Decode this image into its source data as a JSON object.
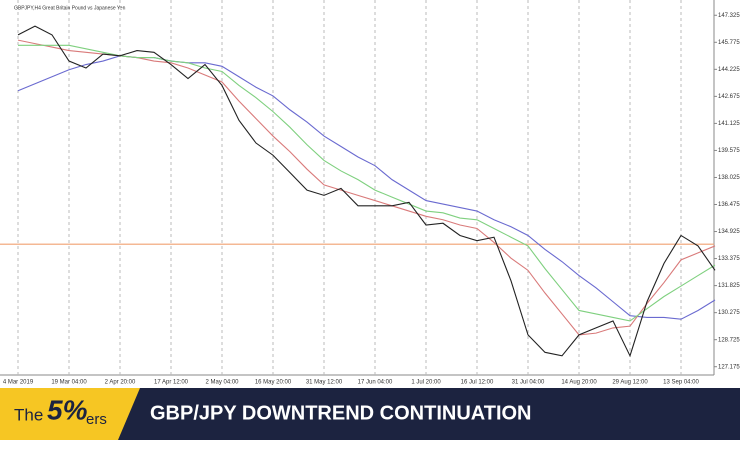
{
  "chart_data": {
    "type": "line",
    "header": "GBPJPY,H4 Great Britain Pound vs Japanese Yen",
    "categories": [
      "4 Mar 2019",
      null,
      null,
      "19 Mar 04:00",
      null,
      null,
      "2 Apr 20:00",
      null,
      null,
      "17 Apr 12:00",
      null,
      null,
      "2 May 04:00",
      null,
      null,
      "16 May 20:00",
      null,
      null,
      "31 May 12:00",
      null,
      null,
      "17 Jun 04:00",
      null,
      null,
      "1 Jul 20:00",
      null,
      null,
      "16 Jul 12:00",
      null,
      null,
      "31 Jul 04:00",
      null,
      null,
      "14 Aug 20:00",
      null,
      null,
      "29 Aug 12:00",
      null,
      null,
      "13 Sep 04:00",
      null,
      null
    ],
    "series": [
      {
        "color": "#6a6ad0",
        "values": [
          143.0,
          143.4,
          143.8,
          144.2,
          144.5,
          144.7,
          145.0,
          144.9,
          144.9,
          144.7,
          144.6,
          144.6,
          144.4,
          143.8,
          143.2,
          142.7,
          141.9,
          141.2,
          140.4,
          139.8,
          139.2,
          138.7,
          137.9,
          137.3,
          136.7,
          136.5,
          136.3,
          136.1,
          135.6,
          135.2,
          134.7,
          133.9,
          133.2,
          132.4,
          131.7,
          130.9,
          130.1,
          130.0,
          130.0,
          129.9,
          130.4,
          131.0
        ]
      },
      {
        "color": "#d97a7a",
        "values": [
          145.9,
          145.7,
          145.5,
          145.3,
          145.2,
          145.1,
          145.0,
          144.9,
          144.7,
          144.6,
          144.3,
          143.9,
          143.5,
          142.4,
          141.4,
          140.4,
          139.5,
          138.5,
          137.6,
          137.3,
          137.0,
          136.7,
          136.4,
          136.1,
          135.8,
          135.6,
          135.3,
          135.1,
          134.3,
          133.4,
          132.7,
          131.4,
          130.2,
          129.0,
          129.1,
          129.4,
          129.5,
          130.8,
          132.0,
          133.3,
          133.7,
          134.1
        ]
      },
      {
        "color": "#7fd07f",
        "values": [
          145.6,
          145.6,
          145.6,
          145.6,
          145.4,
          145.2,
          145.0,
          144.9,
          144.9,
          144.7,
          144.6,
          144.3,
          144.1,
          143.3,
          142.6,
          141.8,
          140.9,
          139.9,
          139.0,
          138.4,
          137.9,
          137.3,
          136.9,
          136.5,
          136.1,
          136.0,
          135.7,
          135.6,
          135.1,
          134.6,
          134.1,
          132.8,
          131.6,
          130.4,
          130.2,
          130.0,
          129.8,
          130.5,
          131.2,
          131.8,
          132.4,
          133.0
        ]
      },
      {
        "color": "#222222",
        "values": [
          146.2,
          146.7,
          146.2,
          144.7,
          144.3,
          145.1,
          145.0,
          145.3,
          145.2,
          144.5,
          143.7,
          144.5,
          143.3,
          141.3,
          140.0,
          139.3,
          138.3,
          137.3,
          137.0,
          137.4,
          136.4,
          136.4,
          136.4,
          136.6,
          135.3,
          135.4,
          134.7,
          134.4,
          134.6,
          132.1,
          129.0,
          128.0,
          127.8,
          129.0,
          129.4,
          129.8,
          127.8,
          130.9,
          133.1,
          134.7,
          134.1,
          132.7
        ]
      }
    ],
    "hline": 134.2,
    "hline_color": "#f0a070",
    "ylim": [
      126.7,
      148.2
    ],
    "yticks": [
      127.175,
      128.725,
      130.275,
      131.825,
      133.375,
      134.925,
      136.475,
      138.025,
      139.575,
      141.125,
      142.675,
      144.225,
      145.775,
      147.325
    ],
    "grid": true
  },
  "banner": {
    "logo": {
      "pre": "The",
      "mark": "5%",
      "post": "ers"
    },
    "title": "GBP/JPY DOWNTREND CONTINUATION"
  }
}
